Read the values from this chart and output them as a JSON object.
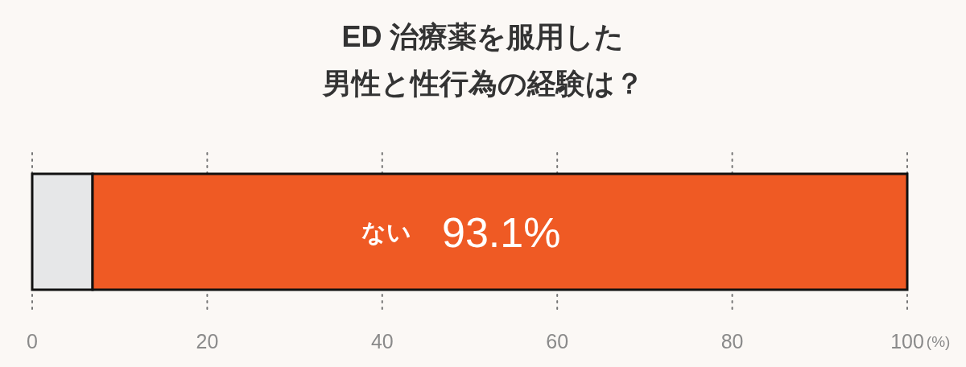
{
  "chart_data": {
    "type": "bar",
    "orientation": "horizontal",
    "stacked": true,
    "title": "ED 治療薬を服用した男性と性行為の経験は？",
    "xlabel": "(%)",
    "categories": [
      null
    ],
    "xlim": [
      0,
      100
    ],
    "xticks": [
      0,
      20,
      40,
      60,
      80,
      100
    ],
    "grid": "x",
    "tick_labels": "x",
    "series": [
      {
        "color": "#e6e7e8",
        "values": [
          6.9
        ]
      },
      {
        "name": "ない",
        "color": "#ef5a24",
        "values": [
          93.1
        ],
        "value_labels": [
          "93.1%"
        ]
      }
    ]
  }
}
